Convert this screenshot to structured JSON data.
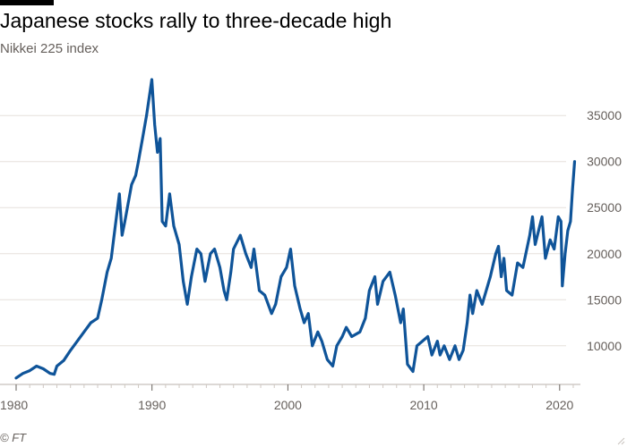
{
  "header": {
    "title": "Japanese stocks rally to three-decade high",
    "subtitle": "Nikkei 225 index"
  },
  "footer": {
    "source": "© FT"
  },
  "colors": {
    "line": "#0f5499",
    "grid": "#e6e0db",
    "text": "#66605c",
    "title": "#000000",
    "accent_bar": "#000000"
  },
  "chart_data": {
    "type": "line",
    "title": "Japanese stocks rally to three-decade high",
    "subtitle": "Nikkei 225 index",
    "xlabel": "",
    "ylabel": "",
    "xlim": [
      1980,
      2021.2
    ],
    "ylim": [
      6000,
      39000
    ],
    "x_ticks": [
      1980,
      1990,
      2000,
      2010,
      2020
    ],
    "y_ticks": [
      10000,
      15000,
      20000,
      25000,
      30000,
      35000
    ],
    "y_axis_side": "right",
    "grid": "horizontal",
    "legend": "none",
    "series": [
      {
        "points": [
          [
            1980.0,
            6500
          ],
          [
            1980.5,
            7000
          ],
          [
            1981.0,
            7300
          ],
          [
            1981.5,
            7800
          ],
          [
            1982.0,
            7500
          ],
          [
            1982.5,
            7000
          ],
          [
            1982.8,
            6900
          ],
          [
            1983.0,
            7800
          ],
          [
            1983.5,
            8400
          ],
          [
            1984.0,
            9500
          ],
          [
            1984.5,
            10500
          ],
          [
            1985.0,
            11500
          ],
          [
            1985.5,
            12500
          ],
          [
            1986.0,
            13000
          ],
          [
            1986.3,
            15000
          ],
          [
            1986.7,
            18000
          ],
          [
            1987.0,
            19500
          ],
          [
            1987.3,
            23000
          ],
          [
            1987.6,
            26500
          ],
          [
            1987.8,
            22000
          ],
          [
            1988.0,
            23500
          ],
          [
            1988.5,
            27500
          ],
          [
            1988.8,
            28500
          ],
          [
            1989.0,
            30000
          ],
          [
            1989.3,
            32500
          ],
          [
            1989.6,
            35000
          ],
          [
            1989.99,
            38900
          ],
          [
            1990.2,
            34000
          ],
          [
            1990.4,
            31000
          ],
          [
            1990.6,
            32500
          ],
          [
            1990.75,
            23500
          ],
          [
            1991.0,
            23000
          ],
          [
            1991.3,
            26500
          ],
          [
            1991.6,
            23000
          ],
          [
            1992.0,
            21000
          ],
          [
            1992.3,
            17000
          ],
          [
            1992.6,
            14500
          ],
          [
            1992.9,
            17500
          ],
          [
            1993.3,
            20500
          ],
          [
            1993.6,
            20000
          ],
          [
            1993.9,
            17000
          ],
          [
            1994.3,
            20000
          ],
          [
            1994.6,
            20500
          ],
          [
            1995.0,
            18500
          ],
          [
            1995.3,
            16000
          ],
          [
            1995.5,
            15000
          ],
          [
            1995.8,
            18000
          ],
          [
            1996.0,
            20500
          ],
          [
            1996.5,
            22000
          ],
          [
            1996.9,
            20000
          ],
          [
            1997.3,
            18500
          ],
          [
            1997.5,
            20500
          ],
          [
            1997.9,
            16000
          ],
          [
            1998.3,
            15500
          ],
          [
            1998.8,
            13500
          ],
          [
            1999.1,
            14500
          ],
          [
            1999.5,
            17500
          ],
          [
            1999.9,
            18500
          ],
          [
            2000.2,
            20500
          ],
          [
            2000.5,
            16500
          ],
          [
            2000.9,
            14000
          ],
          [
            2001.2,
            12500
          ],
          [
            2001.5,
            13500
          ],
          [
            2001.8,
            10000
          ],
          [
            2002.2,
            11500
          ],
          [
            2002.5,
            10500
          ],
          [
            2002.9,
            8500
          ],
          [
            2003.3,
            7800
          ],
          [
            2003.6,
            10000
          ],
          [
            2004.0,
            11000
          ],
          [
            2004.3,
            12000
          ],
          [
            2004.7,
            11000
          ],
          [
            2005.3,
            11500
          ],
          [
            2005.7,
            13000
          ],
          [
            2006.0,
            16000
          ],
          [
            2006.4,
            17500
          ],
          [
            2006.6,
            14500
          ],
          [
            2007.0,
            17000
          ],
          [
            2007.5,
            18000
          ],
          [
            2007.9,
            15500
          ],
          [
            2008.3,
            12500
          ],
          [
            2008.5,
            14000
          ],
          [
            2008.8,
            8000
          ],
          [
            2009.2,
            7200
          ],
          [
            2009.5,
            10000
          ],
          [
            2009.9,
            10500
          ],
          [
            2010.3,
            11000
          ],
          [
            2010.6,
            9000
          ],
          [
            2011.0,
            10500
          ],
          [
            2011.2,
            9000
          ],
          [
            2011.5,
            10000
          ],
          [
            2011.9,
            8500
          ],
          [
            2012.3,
            10000
          ],
          [
            2012.6,
            8500
          ],
          [
            2012.9,
            9500
          ],
          [
            2013.2,
            12500
          ],
          [
            2013.4,
            15500
          ],
          [
            2013.6,
            13500
          ],
          [
            2013.9,
            16000
          ],
          [
            2014.3,
            14500
          ],
          [
            2014.9,
            17500
          ],
          [
            2015.3,
            20000
          ],
          [
            2015.5,
            20800
          ],
          [
            2015.7,
            17500
          ],
          [
            2015.9,
            19500
          ],
          [
            2016.1,
            16000
          ],
          [
            2016.5,
            15500
          ],
          [
            2016.9,
            19000
          ],
          [
            2017.3,
            18500
          ],
          [
            2017.8,
            22000
          ],
          [
            2018.0,
            24000
          ],
          [
            2018.2,
            21000
          ],
          [
            2018.7,
            24000
          ],
          [
            2018.95,
            19500
          ],
          [
            2019.3,
            21500
          ],
          [
            2019.6,
            20500
          ],
          [
            2019.9,
            24000
          ],
          [
            2020.1,
            23500
          ],
          [
            2020.2,
            16500
          ],
          [
            2020.4,
            20000
          ],
          [
            2020.6,
            22500
          ],
          [
            2020.8,
            23500
          ],
          [
            2020.95,
            27000
          ],
          [
            2021.1,
            30000
          ]
        ]
      }
    ]
  }
}
